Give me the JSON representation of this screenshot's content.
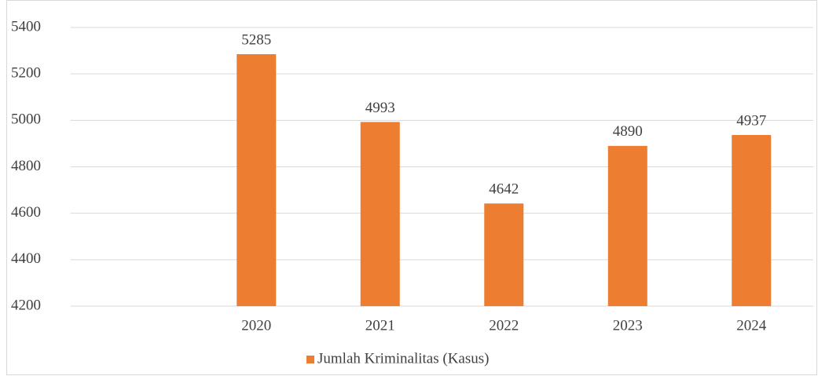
{
  "chart_data": {
    "type": "bar",
    "categories": [
      null,
      "2020",
      "2021",
      "2022",
      "2023",
      "2024"
    ],
    "series": [
      {
        "name": "Jumlah Kriminalitas (Kasus)",
        "color": "#ed7d31",
        "values": [
          null,
          5285,
          4993,
          4642,
          4890,
          4937
        ]
      }
    ],
    "ylim": [
      4200,
      5400
    ],
    "yticks": [
      4200,
      4400,
      4600,
      4800,
      5000,
      5200,
      5400
    ],
    "grid": true,
    "legend": "bottom"
  }
}
